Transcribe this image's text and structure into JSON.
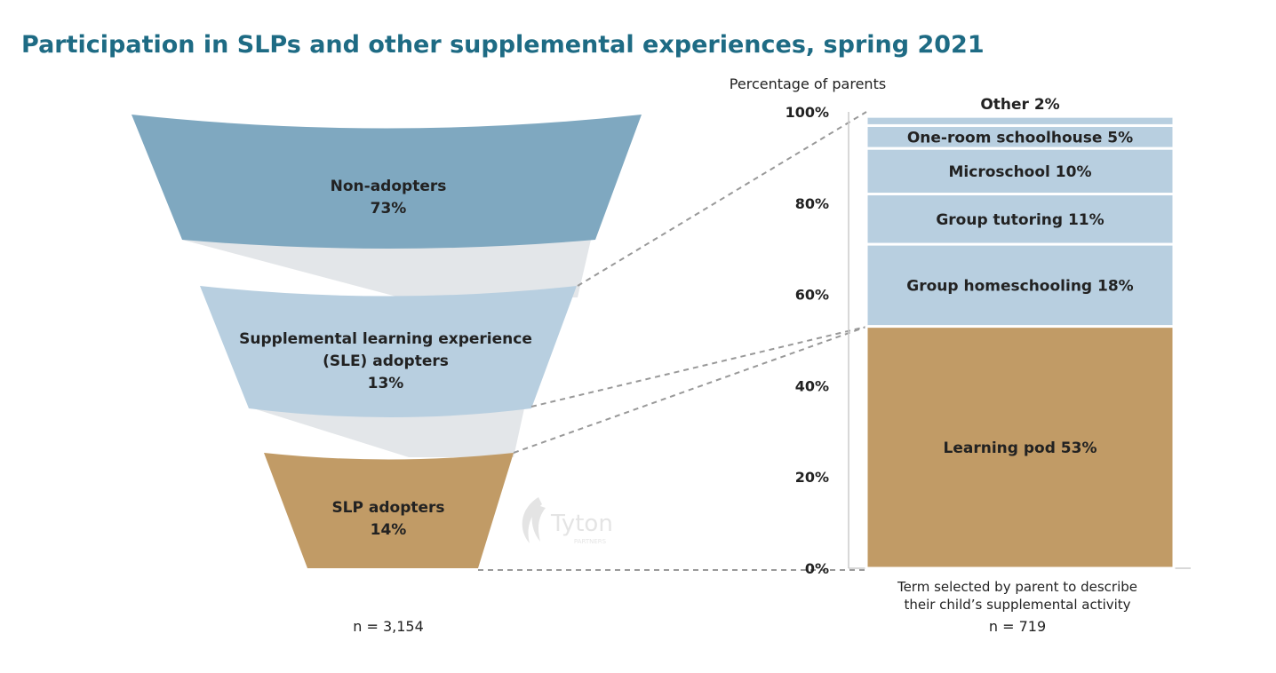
{
  "title": "Participation in SLPs and other supplemental experiences, spring 2021",
  "funnel": {
    "stages": [
      {
        "name": "Non-adopters",
        "value": 73,
        "value_label": "73%",
        "color": "#7fa8c0"
      },
      {
        "name": "Supplemental learning experience",
        "name_line2": "(SLE) adopters",
        "value": 13,
        "value_label": "13%",
        "color": "#b8cfe0"
      },
      {
        "name": "SLP adopters",
        "value": 14,
        "value_label": "14%",
        "color": "#c19b66"
      }
    ],
    "n_label": "n = 3,154",
    "watermark": {
      "brand": "Tyton",
      "sub": "PARTNERS"
    }
  },
  "chart_data": {
    "type": "bar",
    "subtype": "stacked-100",
    "ylabel": "Percentage of parents",
    "ylim": [
      0,
      100
    ],
    "yticks": [
      "0%",
      "20%",
      "40%",
      "60%",
      "80%",
      "100%"
    ],
    "segments": [
      {
        "name": "Learning pod",
        "value": 53,
        "label": "Learning pod 53%",
        "color": "#c19b66"
      },
      {
        "name": "Group homeschooling",
        "value": 18,
        "label": "Group homeschooling 18%",
        "color": "#b8cfe0"
      },
      {
        "name": "Group tutoring",
        "value": 11,
        "label": "Group tutoring 11%",
        "color": "#b8cfe0"
      },
      {
        "name": "Microschool",
        "value": 10,
        "label": "Microschool 10%",
        "color": "#b8cfe0"
      },
      {
        "name": "One-room schoolhouse",
        "value": 5,
        "label": "One-room schoolhouse 5%",
        "color": "#b8cfe0"
      },
      {
        "name": "Other",
        "value": 2,
        "label": "Other 2%",
        "color": "#b8cfe0"
      }
    ],
    "xlabel_line1": "Term selected by parent to describe",
    "xlabel_line2": "their child’s supplemental activity",
    "n_label": "n = 719"
  },
  "colors": {
    "title": "#1e6b84",
    "text": "#222222",
    "axis": "#cccccc",
    "connector": "#999999",
    "gap": "#e3e6e9"
  }
}
